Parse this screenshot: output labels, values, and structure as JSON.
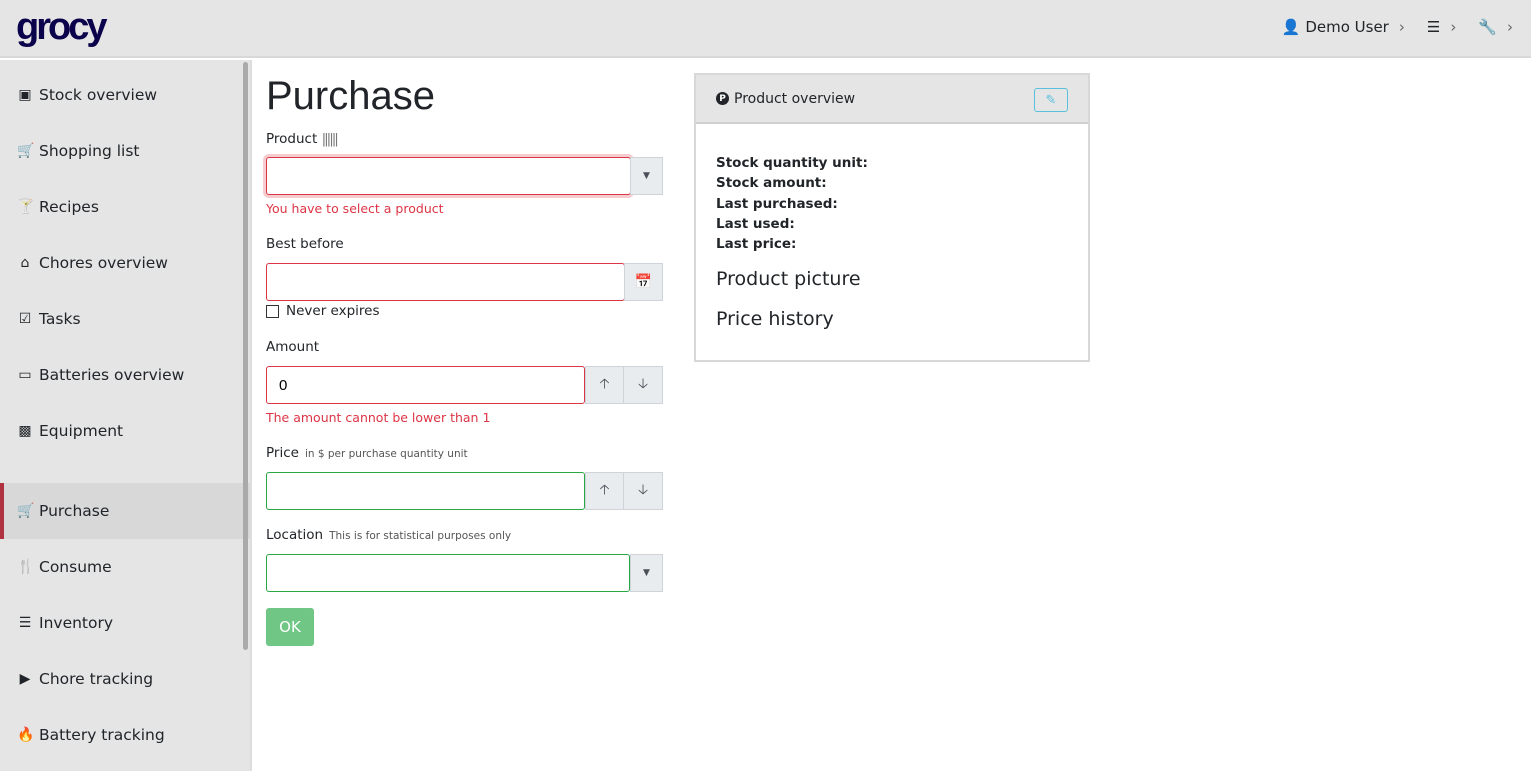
{
  "app": {
    "logo": "grocy"
  },
  "topnav": {
    "user": "Demo User"
  },
  "sidebar": {
    "items": [
      {
        "label": "Stock overview",
        "icon": "box-icon"
      },
      {
        "label": "Shopping list",
        "icon": "cart-icon"
      },
      {
        "label": "Recipes",
        "icon": "cocktail-icon"
      },
      {
        "label": "Chores overview",
        "icon": "home-icon"
      },
      {
        "label": "Tasks",
        "icon": "tasks-icon"
      },
      {
        "label": "Batteries overview",
        "icon": "battery-icon"
      },
      {
        "label": "Equipment",
        "icon": "toolbox-icon"
      },
      {
        "label": "Purchase",
        "icon": "cart-icon",
        "active": true
      },
      {
        "label": "Consume",
        "icon": "utensils-icon"
      },
      {
        "label": "Inventory",
        "icon": "list-icon"
      },
      {
        "label": "Chore tracking",
        "icon": "play-icon"
      },
      {
        "label": "Battery tracking",
        "icon": "fire-icon"
      }
    ]
  },
  "page": {
    "title": "Purchase"
  },
  "form": {
    "product_label": "Product",
    "product_value": "",
    "product_error": "You have to select a product",
    "best_before_label": "Best before",
    "best_before_value": "",
    "never_expires_label": "Never expires",
    "amount_label": "Amount",
    "amount_value": "0",
    "amount_error": "The amount cannot be lower than 1",
    "price_label": "Price",
    "price_hint": "in $ per purchase quantity unit",
    "price_value": "",
    "location_label": "Location",
    "location_hint": "This is for statistical purposes only",
    "location_value": "",
    "ok_label": "OK"
  },
  "card": {
    "title": "Product overview",
    "fields": [
      "Stock quantity unit:",
      "Stock amount:",
      "Last purchased:",
      "Last used:",
      "Last price:"
    ],
    "picture": "Product picture",
    "price_history": "Price history"
  },
  "colors": {
    "accent": "#b0313f",
    "error": "#dc3545",
    "valid": "#28a745",
    "ok_button": "#6fc685",
    "logo": "#0b024c"
  }
}
